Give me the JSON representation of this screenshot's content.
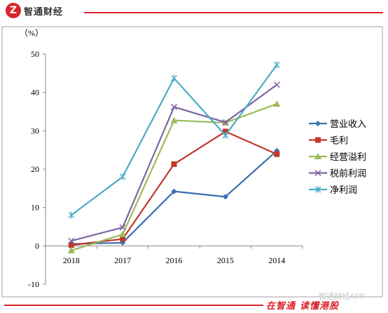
{
  "brand": {
    "logo_glyph": "Z",
    "logo_text": "智通财经",
    "color": "#d9242b"
  },
  "footer": {
    "slogan_a": "在智通",
    "slogan_b": "读懂港股",
    "watermark": "智通财经APP"
  },
  "chart_data": {
    "type": "line",
    "y_unit_label": "（%）",
    "categories": [
      "2018",
      "2017",
      "2016",
      "2015",
      "2014"
    ],
    "ylim": [
      -10,
      50
    ],
    "yticks": [
      -10,
      0,
      10,
      20,
      30,
      40,
      50
    ],
    "grid": false,
    "legend_position": "right",
    "series": [
      {
        "name": "营业收入",
        "color": "#3a6fb0",
        "marker": "diamond",
        "values": [
          0.5,
          0.8,
          14.2,
          12.8,
          24.8
        ]
      },
      {
        "name": "毛利",
        "color": "#c0392b",
        "marker": "square",
        "values": [
          0.2,
          1.8,
          21.3,
          29.8,
          23.9
        ]
      },
      {
        "name": "经营溢利",
        "color": "#9bbb59",
        "marker": "triangle",
        "values": [
          -1.2,
          3.0,
          32.7,
          32.1,
          37.0
        ]
      },
      {
        "name": "税前利润",
        "color": "#8064a2",
        "marker": "x",
        "values": [
          1.3,
          4.8,
          36.2,
          32.2,
          42.0
        ]
      },
      {
        "name": "净利润",
        "color": "#4bacc6",
        "marker": "star",
        "values": [
          8.0,
          18.0,
          43.7,
          28.8,
          47.2
        ]
      }
    ]
  }
}
